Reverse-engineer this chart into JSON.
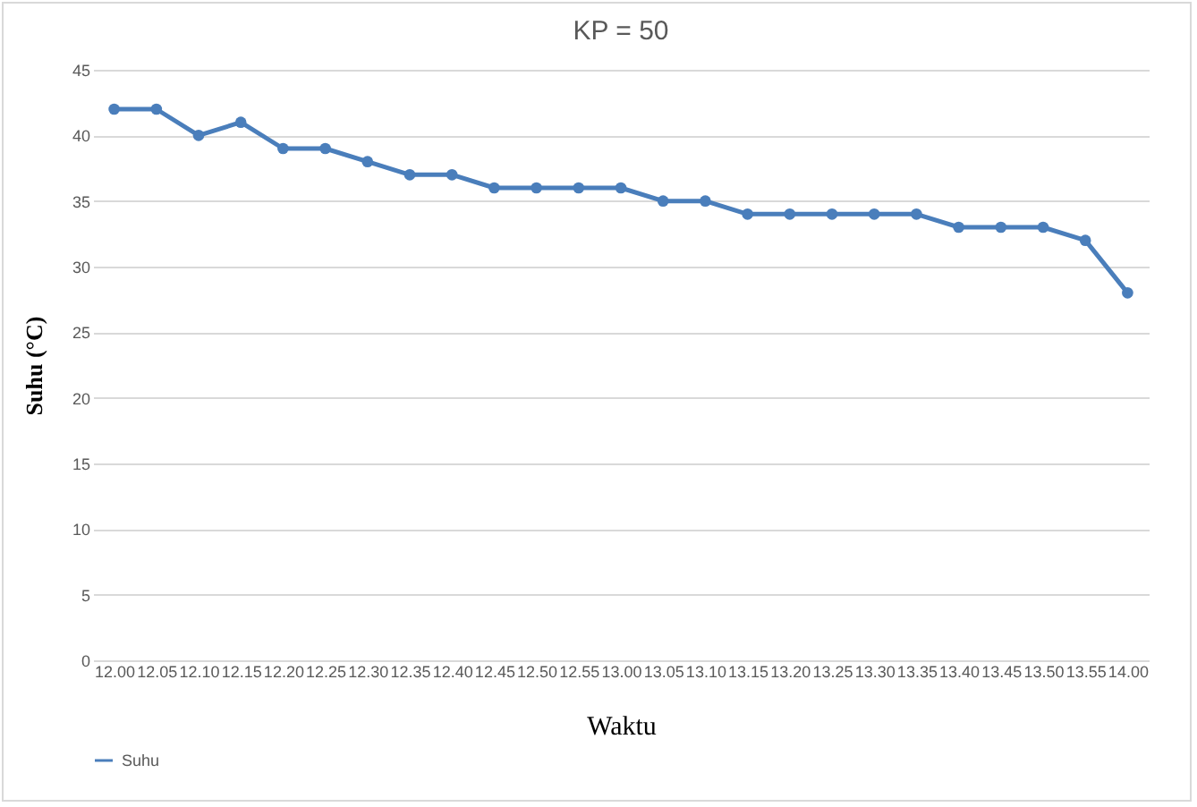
{
  "chart_data": {
    "type": "line",
    "title": "KP = 50",
    "xlabel": "Waktu",
    "ylabel": "Suhu (°C)",
    "categories": [
      "12.00",
      "12.05",
      "12.10",
      "12.15",
      "12.20",
      "12.25",
      "12.30",
      "12.35",
      "12.40",
      "12.45",
      "12.50",
      "12.55",
      "13.00",
      "13.05",
      "13.10",
      "13.15",
      "13.20",
      "13.25",
      "13.30",
      "13.35",
      "13.40",
      "13.45",
      "13.50",
      "13.55",
      "14.00"
    ],
    "series": [
      {
        "name": "Suhu",
        "color": "#4a7ebb",
        "values": [
          42,
          42,
          40,
          41,
          39,
          39,
          38,
          37,
          37,
          36,
          36,
          36,
          36,
          35,
          35,
          34,
          34,
          34,
          34,
          34,
          33,
          33,
          33,
          32,
          28
        ]
      }
    ],
    "ylim": [
      0,
      45
    ],
    "yticks": [
      0,
      5,
      10,
      15,
      20,
      25,
      30,
      35,
      40,
      45
    ],
    "grid": "y",
    "legend": "bottom",
    "marker": "circle",
    "line_style": "solid"
  }
}
